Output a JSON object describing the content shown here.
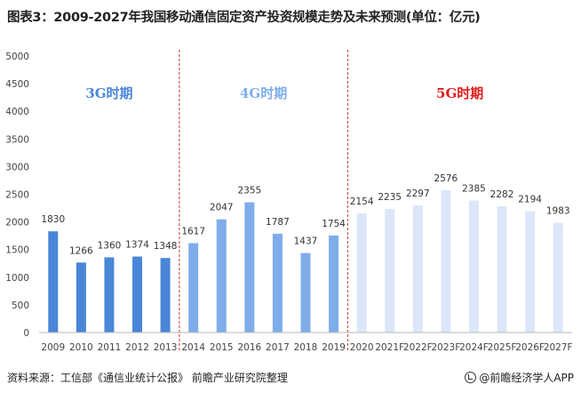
{
  "header": {
    "title": "图表3：2009-2027年我国移动通信固定资产投资规模走势及未来预测(单位：亿元)"
  },
  "footer": {
    "source": "资料来源：工信部《通信业统计公报》 前瞻产业研究院整理",
    "brand": "@前瞻经济学人APP"
  },
  "colors": {
    "bar_3g": "#4a86d8",
    "bar_4g": "#7fadea",
    "bar_5g": "#dbe7f8",
    "label_3g": "#4a86d8",
    "label_4g": "#7fadea",
    "label_5g": "#e31b1b",
    "divider": "#c0392b"
  },
  "chart_data": {
    "type": "bar",
    "categories": [
      "2009",
      "2010",
      "2011",
      "2012",
      "2013",
      "2014",
      "2015",
      "2016",
      "2017",
      "2018",
      "2019",
      "2020",
      "2021F",
      "2022F",
      "2023F",
      "2024F",
      "2025F",
      "2026F",
      "2027F"
    ],
    "values": [
      1830,
      1266,
      1360,
      1374,
      1348,
      1617,
      2047,
      2355,
      1787,
      1437,
      1754,
      2154,
      2235,
      2297,
      2576,
      2385,
      2282,
      2194,
      1983
    ],
    "ylim": [
      0,
      5000
    ],
    "yticks": [
      0,
      500,
      1000,
      1500,
      2000,
      2500,
      3000,
      3500,
      4000,
      4500,
      5000
    ],
    "data_labels": true,
    "grid": false,
    "periods": [
      {
        "label": "3G时期",
        "from": "2009",
        "to": "2013"
      },
      {
        "label": "4G时期",
        "from": "2014",
        "to": "2019"
      },
      {
        "label": "5G时期",
        "from": "2020",
        "to": "2027F"
      }
    ]
  }
}
